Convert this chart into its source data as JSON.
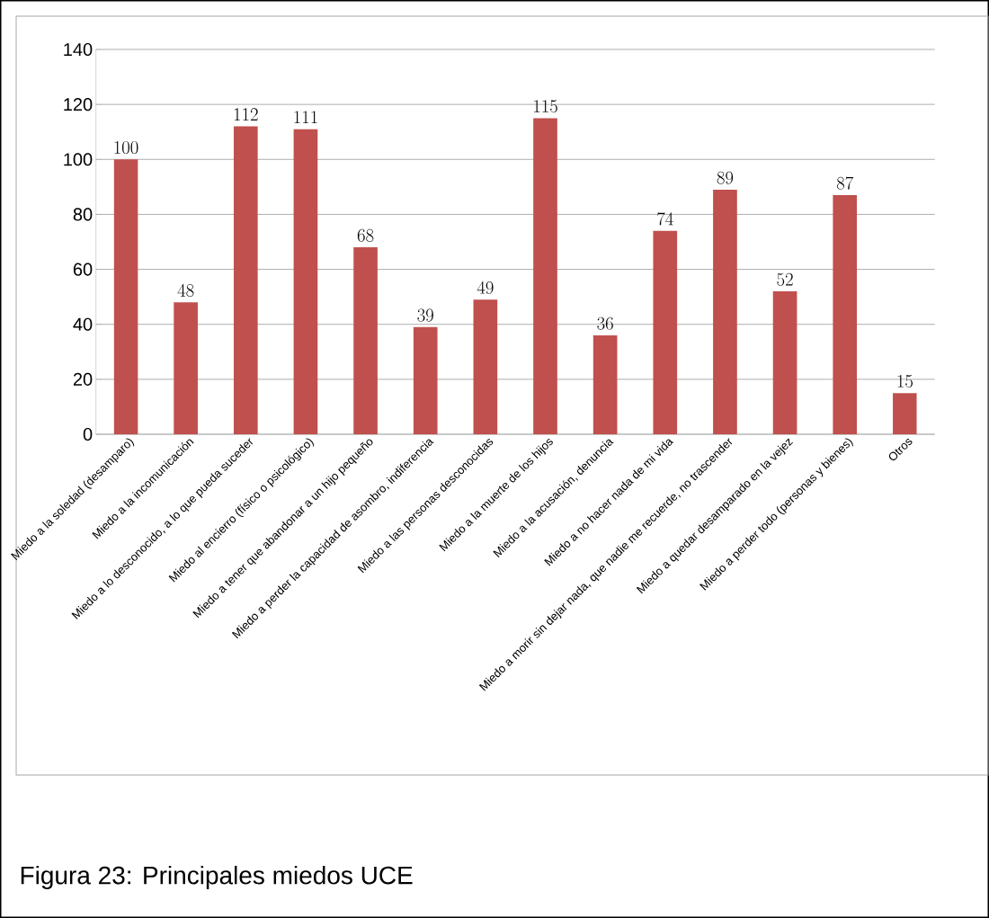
{
  "chart_data": {
    "type": "bar",
    "categories": [
      "Miedo a la soledad (desamparo)",
      "Miedo a la incomunicación",
      "Miedo a lo desconocido, a lo que pueda suceder",
      "Miedo al encierro (físico o psicológico)",
      "Miedo a tener que abandonar a un hijo pequeño",
      "Miedo a perder la capacidad de asombro, indiferencia",
      "Miedo a las personas desconocidas",
      "Miedo a la muerte de los hijos",
      "Miedo a la acusación, denuncia",
      "Miedo a no hacer nada de mi vida",
      "Miedo a morir sin dejar nada, que nadie me recuerde, no trascender",
      "Miedo a quedar desamparado en la vejez",
      "Miedo a perder todo (personas y bienes)",
      "Otros"
    ],
    "values": [
      100,
      48,
      112,
      111,
      68,
      39,
      49,
      115,
      36,
      74,
      89,
      52,
      87,
      15
    ],
    "color": "#c0504d",
    "ylim": [
      0,
      140
    ],
    "yticks": [
      0,
      20,
      40,
      60,
      80,
      100,
      120,
      140
    ],
    "grid": "y",
    "data_labels": true,
    "annotations": [
      "Figura 23: Principales miedos UCE"
    ]
  }
}
